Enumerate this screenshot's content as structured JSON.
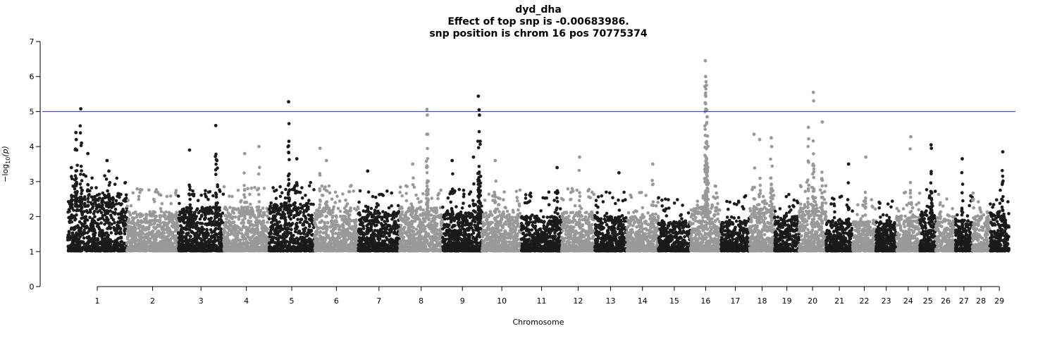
{
  "chart_data": {
    "type": "scatter",
    "title": "dyd_dha",
    "subtitle": "Effect of top snp is -0.00683986.",
    "subtitle2": "snp position is chrom 16 pos 70775374",
    "xlabel": "Chromosome",
    "ylabel_prefix": "−log",
    "ylabel_sub": "10",
    "ylabel_suffix": "(p)",
    "ylim": [
      0,
      7
    ],
    "yticks": [
      "0",
      "1",
      "2",
      "3",
      "4",
      "5",
      "6",
      "7"
    ],
    "threshold": 5,
    "threshold_color": "#2b2bb8",
    "colors": [
      "#1a1a1a",
      "#999999"
    ],
    "grid": false,
    "chromosomes": [
      {
        "label": "1",
        "start": 0,
        "end": 158,
        "baseline": 2.3
      },
      {
        "label": "2",
        "start": 158,
        "end": 295,
        "baseline": 1.9
      },
      {
        "label": "3",
        "start": 295,
        "end": 416,
        "baseline": 2.0
      },
      {
        "label": "4",
        "start": 416,
        "end": 537,
        "baseline": 2.0
      },
      {
        "label": "5",
        "start": 537,
        "end": 658,
        "baseline": 2.1
      },
      {
        "label": "6",
        "start": 658,
        "end": 775,
        "baseline": 2.0
      },
      {
        "label": "7",
        "start": 775,
        "end": 885,
        "baseline": 1.9
      },
      {
        "label": "8",
        "start": 885,
        "end": 1000,
        "baseline": 2.0
      },
      {
        "label": "9",
        "start": 1000,
        "end": 1105,
        "baseline": 1.9
      },
      {
        "label": "10",
        "start": 1105,
        "end": 1210,
        "baseline": 1.9
      },
      {
        "label": "11",
        "start": 1210,
        "end": 1317,
        "baseline": 1.8
      },
      {
        "label": "12",
        "start": 1317,
        "end": 1405,
        "baseline": 1.9
      },
      {
        "label": "13",
        "start": 1405,
        "end": 1490,
        "baseline": 1.8
      },
      {
        "label": "14",
        "start": 1490,
        "end": 1575,
        "baseline": 1.8
      },
      {
        "label": "15",
        "start": 1575,
        "end": 1660,
        "baseline": 1.7
      },
      {
        "label": "16",
        "start": 1660,
        "end": 1742,
        "baseline": 2.0
      },
      {
        "label": "17",
        "start": 1742,
        "end": 1818,
        "baseline": 1.7
      },
      {
        "label": "18",
        "start": 1818,
        "end": 1885,
        "baseline": 2.0
      },
      {
        "label": "19",
        "start": 1885,
        "end": 1950,
        "baseline": 1.8
      },
      {
        "label": "20",
        "start": 1950,
        "end": 2022,
        "baseline": 2.1
      },
      {
        "label": "21",
        "start": 2022,
        "end": 2093,
        "baseline": 1.7
      },
      {
        "label": "22",
        "start": 2093,
        "end": 2155,
        "baseline": 1.7
      },
      {
        "label": "23",
        "start": 2155,
        "end": 2210,
        "baseline": 1.7
      },
      {
        "label": "24",
        "start": 2210,
        "end": 2272,
        "baseline": 1.8
      },
      {
        "label": "25",
        "start": 2272,
        "end": 2315,
        "baseline": 1.9
      },
      {
        "label": "26",
        "start": 2315,
        "end": 2367,
        "baseline": 1.8
      },
      {
        "label": "27",
        "start": 2367,
        "end": 2412,
        "baseline": 1.7
      },
      {
        "label": "28",
        "start": 2412,
        "end": 2458,
        "baseline": 1.8
      },
      {
        "label": "29",
        "start": 2458,
        "end": 2510,
        "baseline": 1.9
      }
    ],
    "peaks": [
      {
        "pos": 10,
        "y": 3.4
      },
      {
        "pos": 22,
        "y": 4.4
      },
      {
        "pos": 23,
        "y": 4.2
      },
      {
        "pos": 24,
        "y": 3.9
      },
      {
        "pos": 35,
        "y": 5.08
      },
      {
        "pos": 37,
        "y": 4.1
      },
      {
        "pos": 54,
        "y": 3.8
      },
      {
        "pos": 105,
        "y": 3.6
      },
      {
        "pos": 110,
        "y": 3.3
      },
      {
        "pos": 325,
        "y": 3.9
      },
      {
        "pos": 395,
        "y": 4.6
      },
      {
        "pos": 398,
        "y": 3.6
      },
      {
        "pos": 472,
        "y": 3.8
      },
      {
        "pos": 510,
        "y": 4.0
      },
      {
        "pos": 589,
        "y": 5.28
      },
      {
        "pos": 590,
        "y": 4.15
      },
      {
        "pos": 611,
        "y": 3.65
      },
      {
        "pos": 673,
        "y": 3.95
      },
      {
        "pos": 690,
        "y": 3.6
      },
      {
        "pos": 800,
        "y": 3.3
      },
      {
        "pos": 920,
        "y": 3.5
      },
      {
        "pos": 958,
        "y": 5.06
      },
      {
        "pos": 959,
        "y": 4.9
      },
      {
        "pos": 960,
        "y": 4.35
      },
      {
        "pos": 1025,
        "y": 3.6
      },
      {
        "pos": 1082,
        "y": 3.7
      },
      {
        "pos": 1095,
        "y": 5.44
      },
      {
        "pos": 1097,
        "y": 5.05
      },
      {
        "pos": 1098,
        "y": 4.9
      },
      {
        "pos": 1100,
        "y": 4.15
      },
      {
        "pos": 1140,
        "y": 3.6
      },
      {
        "pos": 1305,
        "y": 3.4
      },
      {
        "pos": 1365,
        "y": 3.7
      },
      {
        "pos": 1470,
        "y": 3.25
      },
      {
        "pos": 1560,
        "y": 3.5
      },
      {
        "pos": 1700,
        "y": 6.45
      },
      {
        "pos": 1701,
        "y": 6.0
      },
      {
        "pos": 1702,
        "y": 5.85
      },
      {
        "pos": 1703,
        "y": 5.75
      },
      {
        "pos": 1704,
        "y": 5.05
      },
      {
        "pos": 1705,
        "y": 4.85
      },
      {
        "pos": 1706,
        "y": 4.3
      },
      {
        "pos": 1707,
        "y": 4.0
      },
      {
        "pos": 1830,
        "y": 4.35
      },
      {
        "pos": 1845,
        "y": 4.2
      },
      {
        "pos": 1876,
        "y": 4.25
      },
      {
        "pos": 1877,
        "y": 4.0
      },
      {
        "pos": 1975,
        "y": 4.55
      },
      {
        "pos": 1988,
        "y": 5.55
      },
      {
        "pos": 2012,
        "y": 4.7
      },
      {
        "pos": 2082,
        "y": 3.5
      },
      {
        "pos": 2128,
        "y": 3.7
      },
      {
        "pos": 2248,
        "y": 4.28
      },
      {
        "pos": 2302,
        "y": 4.05
      },
      {
        "pos": 2303,
        "y": 3.95
      },
      {
        "pos": 2385,
        "y": 3.65
      },
      {
        "pos": 2493,
        "y": 3.85
      }
    ]
  }
}
